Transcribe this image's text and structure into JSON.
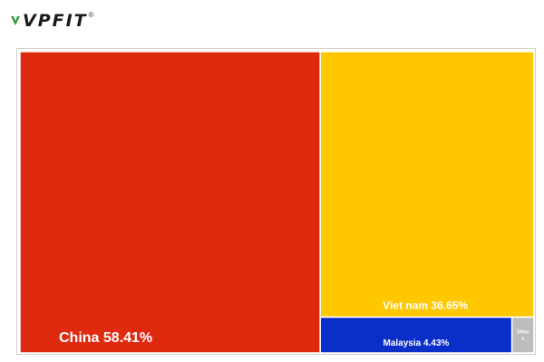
{
  "brand": {
    "logo_text": "VPFIT",
    "logo_mark": "®"
  },
  "chart_data": {
    "type": "treemap",
    "title": "",
    "items": [
      {
        "label": "China",
        "value": 58.41,
        "value_label": "58.41%",
        "color": "#df2a10"
      },
      {
        "label": "Viet nam",
        "value": 36.65,
        "value_label": "36.65%",
        "color": "#ffc800"
      },
      {
        "label": "Malaysia",
        "value": 4.43,
        "value_label": "4.43%",
        "color": "#0a2fc9"
      },
      {
        "label": "Other\ns",
        "value": 0.51,
        "value_label": "",
        "color": "#bdbdbd"
      }
    ]
  }
}
